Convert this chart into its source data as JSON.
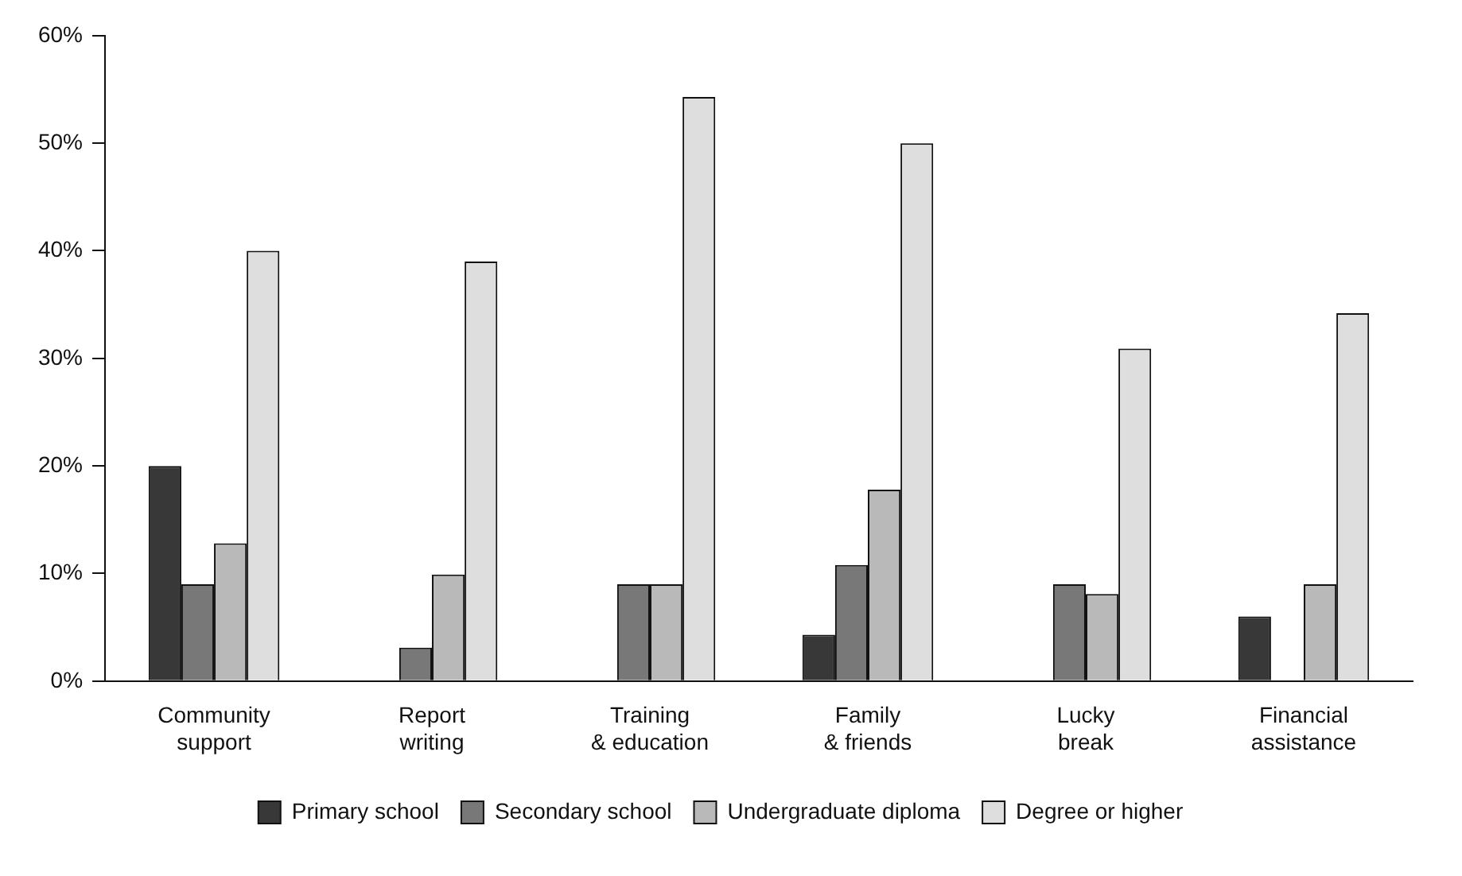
{
  "chart_data": {
    "type": "bar",
    "categories": [
      "Community\nsupport",
      "Report\nwriting",
      "Training\n& education",
      "Family\n& friends",
      "Lucky\nbreak",
      "Financial\nassistance"
    ],
    "series": [
      {
        "name": "Primary school",
        "color": "#383838",
        "values": [
          20,
          null,
          null,
          4.3,
          null,
          6
        ]
      },
      {
        "name": "Secondary school",
        "color": "#787878",
        "values": [
          9,
          3.1,
          9,
          10.8,
          9,
          null
        ]
      },
      {
        "name": "Undergraduate diploma",
        "color": "#b9b9b9",
        "values": [
          12.8,
          9.9,
          9,
          17.8,
          8.1,
          9
        ]
      },
      {
        "name": "Degree or higher",
        "color": "#dedede",
        "values": [
          40,
          39,
          54.3,
          50,
          30.9,
          34.2
        ]
      }
    ],
    "ylim": [
      0,
      60
    ],
    "yticks": [
      {
        "value": 0,
        "label": "0%"
      },
      {
        "value": 10,
        "label": "10%"
      },
      {
        "value": 20,
        "label": "20%"
      },
      {
        "value": 30,
        "label": "30%"
      },
      {
        "value": 40,
        "label": "40%"
      },
      {
        "value": 50,
        "label": "50%"
      },
      {
        "value": 60,
        "label": "60%"
      }
    ],
    "grid": false,
    "legend": "bottom"
  }
}
